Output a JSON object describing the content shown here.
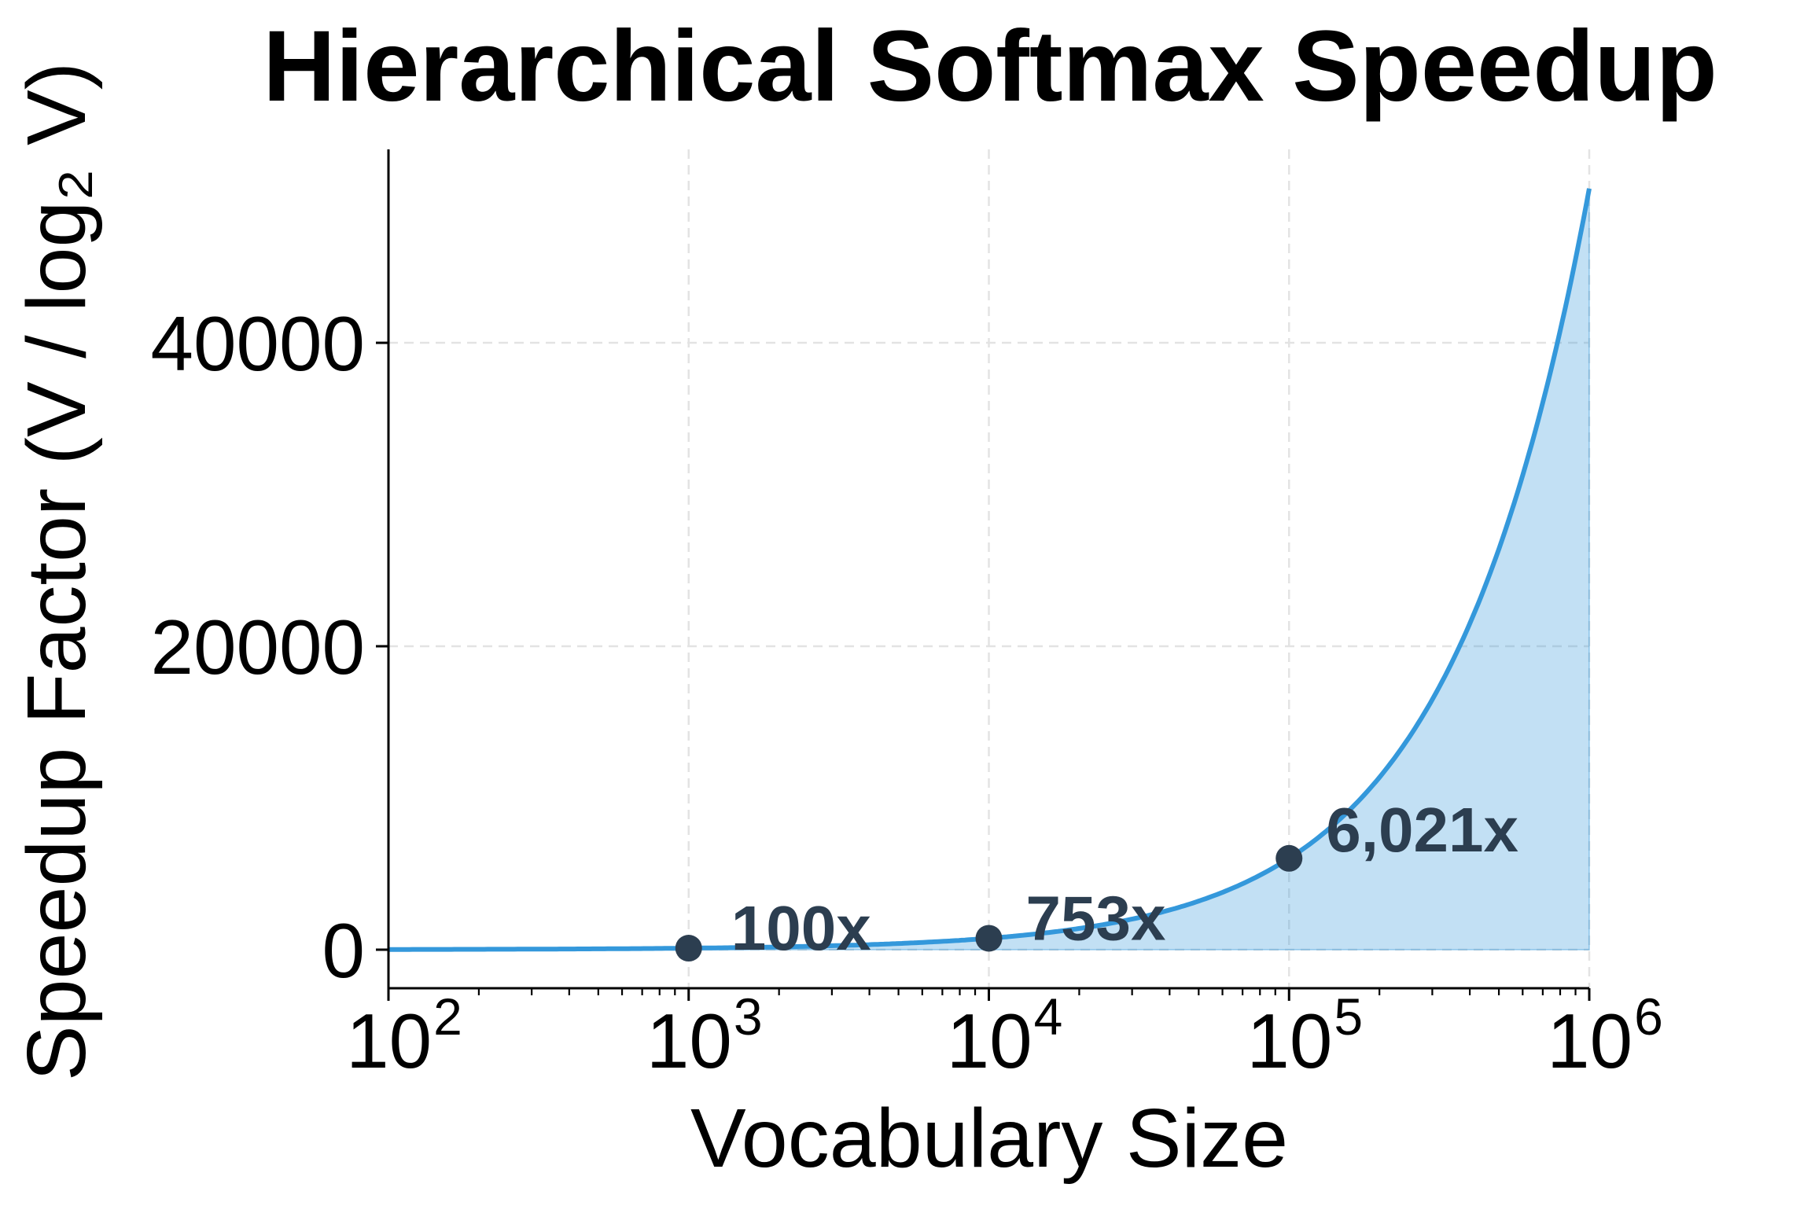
{
  "chart_data": {
    "type": "area",
    "title": "Hierarchical Softmax Speedup",
    "xlabel": "Vocabulary Size",
    "ylabel": "Speedup Factor (V / log₂ V)",
    "xscale": "log",
    "xlim": [
      100,
      1000000
    ],
    "ylim": [
      -2540,
      52750
    ],
    "grid": true,
    "legend": null,
    "x_ticks": [
      {
        "value": 100,
        "base": "10",
        "exp": "2"
      },
      {
        "value": 1000,
        "base": "10",
        "exp": "3"
      },
      {
        "value": 10000,
        "base": "10",
        "exp": "4"
      },
      {
        "value": 100000,
        "base": "10",
        "exp": "5"
      },
      {
        "value": 1000000,
        "base": "10",
        "exp": "6"
      }
    ],
    "y_ticks": [
      {
        "value": 0,
        "label": "0"
      },
      {
        "value": 20000,
        "label": "20000"
      },
      {
        "value": 40000,
        "label": "40000"
      }
    ],
    "series": [
      {
        "name": "Speedup (V / log2 V)",
        "formula": "V / log2(V)",
        "color": "#3498db",
        "fill_color": "#3498db",
        "fill_alpha": 0.3,
        "x": [
          100,
          1000,
          10000,
          100000,
          1000000
        ],
        "values": [
          15,
          100,
          753,
          6021,
          50172
        ]
      }
    ],
    "annotations": [
      {
        "x": 1000,
        "y": 100,
        "label": "100x"
      },
      {
        "x": 10000,
        "y": 753,
        "label": "753x"
      },
      {
        "x": 100000,
        "y": 6021,
        "label": "6,021x"
      }
    ],
    "marker_color": "#2c3e50",
    "annotation_color": "#2c3e50"
  }
}
